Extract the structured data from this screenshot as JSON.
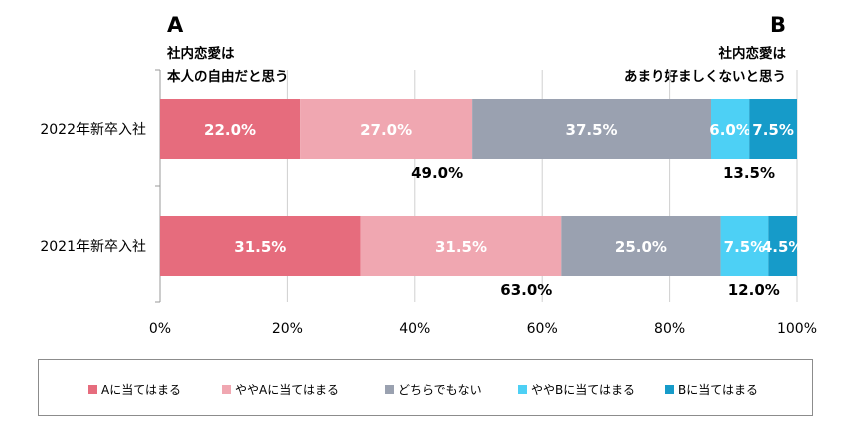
{
  "header": {
    "left_letter": "A",
    "left_line1": "社内恋愛は",
    "left_line2": "本人の自由だと思う",
    "right_letter": "B",
    "right_line1": "社内恋愛は",
    "right_line2": "あまり好ましくないと思う"
  },
  "colors": {
    "a_full": "#e66c7d",
    "a_some": "#f0a7b1",
    "neither": "#9aa1b0",
    "b_some": "#4dd0f5",
    "b_full": "#169bc9",
    "grid": "#d0d0d0",
    "axis": "#999999"
  },
  "chart_data": {
    "type": "bar",
    "orientation": "horizontal",
    "stacked": true,
    "categories": [
      "2022年新卒入社",
      "2021年新卒入社"
    ],
    "series": [
      {
        "name": "Aに当てはまる",
        "values": [
          22.0,
          31.5
        ],
        "labels": [
          "22.0%",
          "31.5%"
        ]
      },
      {
        "name": "ややAに当てはまる",
        "values": [
          27.0,
          31.5
        ],
        "labels": [
          "27.0%",
          "31.5%"
        ]
      },
      {
        "name": "どちらでもない",
        "values": [
          37.5,
          25.0
        ],
        "labels": [
          "37.5%",
          "25.0%"
        ]
      },
      {
        "name": "ややBに当てはまる",
        "values": [
          6.0,
          7.5
        ],
        "labels": [
          "6.0%",
          "7.5%"
        ]
      },
      {
        "name": "Bに当てはまる",
        "values": [
          7.5,
          4.5
        ],
        "labels": [
          "7.5%",
          "4.5%"
        ]
      }
    ],
    "totals_a": [
      "49.0%",
      "63.0%"
    ],
    "totals_b": [
      "13.5%",
      "12.0%"
    ],
    "xlim": [
      0,
      100
    ],
    "xticks": [
      "0%",
      "20%",
      "40%",
      "60%",
      "80%",
      "100%"
    ],
    "grid": true,
    "legend_position": "bottom"
  }
}
